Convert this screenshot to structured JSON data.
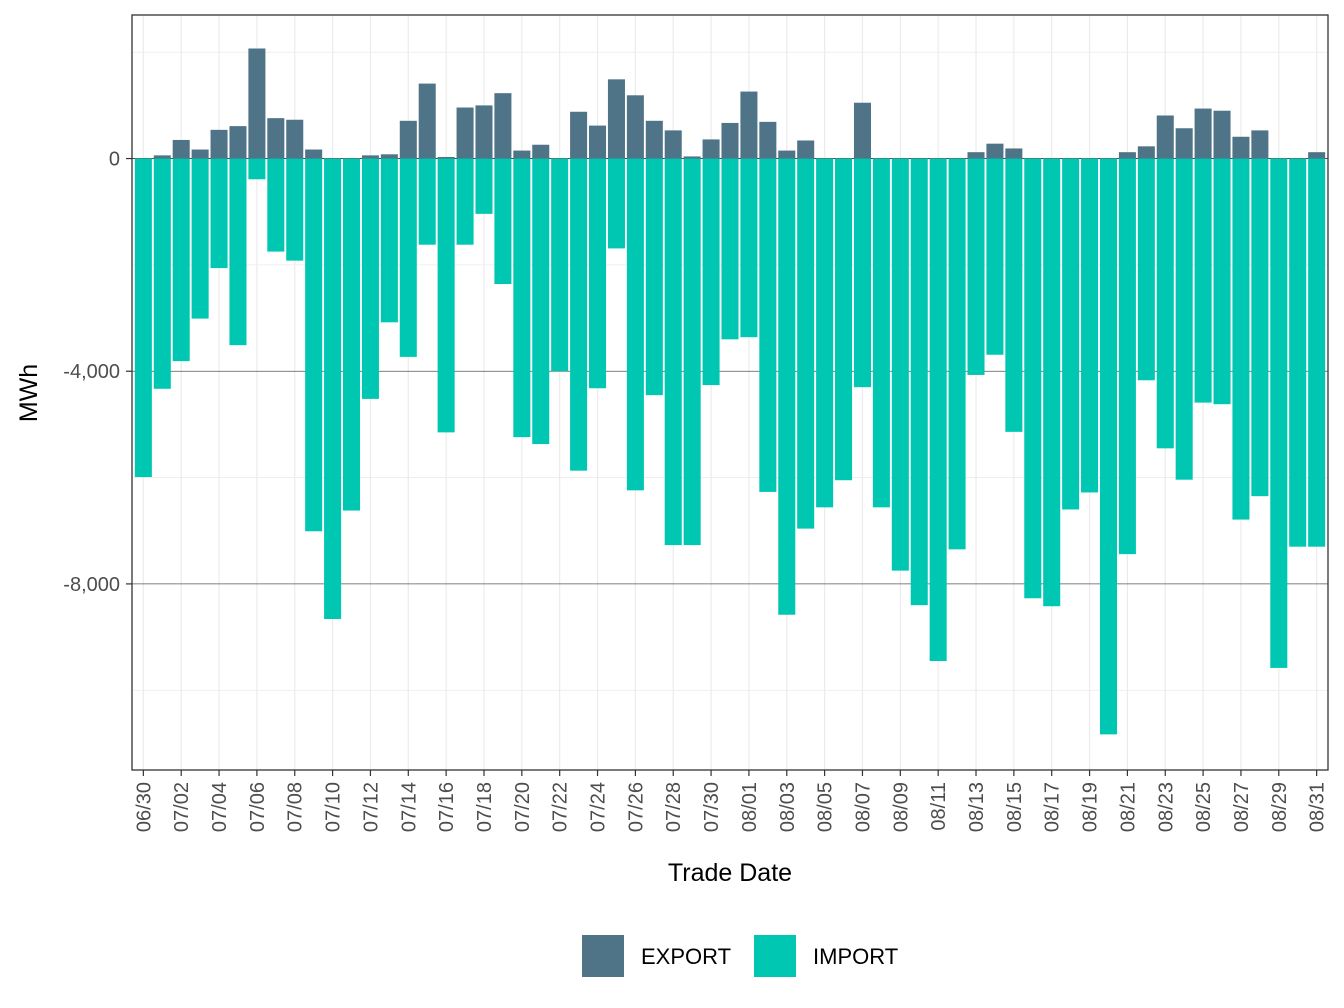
{
  "chart_data": {
    "type": "bar",
    "stacked": true,
    "title": "",
    "xlabel": "Trade Date",
    "ylabel": "MWh",
    "ylim": [
      -11500,
      2700
    ],
    "yticks": [
      0,
      -4000,
      -8000
    ],
    "ytick_labels": [
      "0",
      "-4,000",
      "-8,000"
    ],
    "grid": true,
    "legend_position": "bottom",
    "dates": [
      "06/30",
      "07/01",
      "07/02",
      "07/03",
      "07/04",
      "07/05",
      "07/06",
      "07/07",
      "07/08",
      "07/09",
      "07/10",
      "07/11",
      "07/12",
      "07/13",
      "07/14",
      "07/15",
      "07/16",
      "07/17",
      "07/18",
      "07/19",
      "07/20",
      "07/21",
      "07/22",
      "07/23",
      "07/24",
      "07/25",
      "07/26",
      "07/27",
      "07/28",
      "07/29",
      "07/30",
      "07/31",
      "08/01",
      "08/02",
      "08/03",
      "08/04",
      "08/05",
      "08/06",
      "08/07",
      "08/08",
      "08/09",
      "08/10",
      "08/11",
      "08/12",
      "08/13",
      "08/14",
      "08/15",
      "08/16",
      "08/17",
      "08/18",
      "08/19",
      "08/20",
      "08/21",
      "08/22",
      "08/23",
      "08/24",
      "08/25",
      "08/26",
      "08/27",
      "08/28",
      "08/29",
      "08/30",
      "08/31"
    ],
    "xtick_labels": [
      "06/30",
      "07/02",
      "07/04",
      "07/06",
      "07/08",
      "07/10",
      "07/12",
      "07/14",
      "07/16",
      "07/18",
      "07/20",
      "07/22",
      "07/24",
      "07/26",
      "07/28",
      "07/30",
      "08/01",
      "08/03",
      "08/05",
      "08/07",
      "08/09",
      "08/11",
      "08/13",
      "08/15",
      "08/17",
      "08/19",
      "08/21",
      "08/23",
      "08/25",
      "08/27",
      "08/29",
      "08/31"
    ],
    "series": [
      {
        "name": "EXPORT",
        "color": "#507487",
        "values": [
          0,
          60,
          350,
          170,
          540,
          610,
          2070,
          760,
          730,
          170,
          0,
          0,
          60,
          80,
          710,
          1410,
          30,
          960,
          1000,
          1230,
          150,
          260,
          0,
          880,
          620,
          1490,
          1190,
          710,
          530,
          40,
          360,
          670,
          1260,
          690,
          150,
          340,
          0,
          0,
          1050,
          0,
          0,
          0,
          0,
          0,
          120,
          280,
          190,
          0,
          0,
          0,
          0,
          0,
          120,
          230,
          810,
          570,
          940,
          900,
          410,
          530,
          0,
          0,
          120
        ]
      },
      {
        "name": "IMPORT",
        "color": "#00C7B1",
        "values": [
          -5990,
          -4330,
          -3810,
          -3010,
          -2060,
          -3510,
          -390,
          -1750,
          -1920,
          -7010,
          -8660,
          -6620,
          -4520,
          -3080,
          -3730,
          -1620,
          -5150,
          -1620,
          -1040,
          -2360,
          -5240,
          -5370,
          -4000,
          -5870,
          -4320,
          -1690,
          -6240,
          -4450,
          -7270,
          -7270,
          -4260,
          -3400,
          -3360,
          -6270,
          -8580,
          -6960,
          -6560,
          -6050,
          -4300,
          -6560,
          -7750,
          -8400,
          -9450,
          -7350,
          -4070,
          -3690,
          -5140,
          -8270,
          -8420,
          -6600,
          -6280,
          -10830,
          -7440,
          -4170,
          -5450,
          -6040,
          -4590,
          -4620,
          -6790,
          -6350,
          -9580,
          -7300,
          -7300
        ]
      }
    ]
  }
}
